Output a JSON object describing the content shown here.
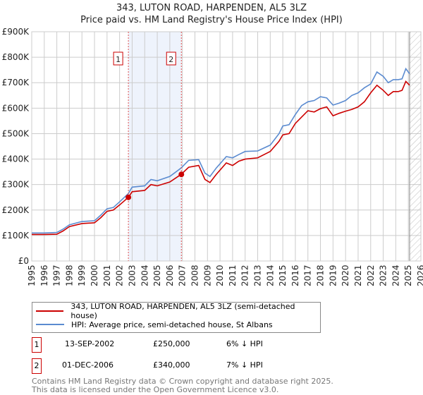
{
  "title": "343, LUTON ROAD, HARPENDEN, AL5 3LZ",
  "subtitle": "Price paid vs. HM Land Registry's House Price Index (HPI)",
  "chart_data": {
    "type": "line",
    "title": "343, LUTON ROAD, HARPENDEN, AL5 3LZ — Price paid vs. HM Land Registry's House Price Index (HPI)",
    "xlim": [
      1995,
      2026
    ],
    "ylim": [
      0,
      900000
    ],
    "x_ticks": [
      "1995",
      "1996",
      "1997",
      "1998",
      "1999",
      "2000",
      "2001",
      "2002",
      "2003",
      "2004",
      "2005",
      "2006",
      "2007",
      "2008",
      "2009",
      "2010",
      "2011",
      "2012",
      "2013",
      "2014",
      "2015",
      "2016",
      "2017",
      "2018",
      "2019",
      "2020",
      "2021",
      "2022",
      "2023",
      "2024",
      "2025",
      "2026"
    ],
    "y_ticks": [
      {
        "v": 0,
        "label": "£0"
      },
      {
        "v": 100000,
        "label": "£100K"
      },
      {
        "v": 200000,
        "label": "£200K"
      },
      {
        "v": 300000,
        "label": "£300K"
      },
      {
        "v": 400000,
        "label": "£400K"
      },
      {
        "v": 500000,
        "label": "£500K"
      },
      {
        "v": 600000,
        "label": "£600K"
      },
      {
        "v": 700000,
        "label": "£700K"
      },
      {
        "v": 800000,
        "label": "£800K"
      },
      {
        "v": 900000,
        "label": "£900K"
      }
    ],
    "grid": true,
    "x": [
      1995,
      1996,
      1997,
      1997.5,
      1998,
      1999,
      2000,
      2000.5,
      2001,
      2001.5,
      2002,
      2002.7,
      2003,
      2004,
      2004.5,
      2005,
      2006,
      2006.9,
      2007.5,
      2008.3,
      2008.8,
      2009.2,
      2009.7,
      2010.5,
      2011,
      2011.5,
      2012,
      2013,
      2014,
      2014.7,
      2015,
      2015.5,
      2016,
      2016.5,
      2017,
      2017.5,
      2018,
      2018.5,
      2019,
      2019.5,
      2020,
      2020.5,
      2021,
      2021.5,
      2022,
      2022.5,
      2023,
      2023.4,
      2023.8,
      2024.2,
      2024.5,
      2024.8,
      2025.1
    ],
    "series": [
      {
        "name": "343, LUTON ROAD, HARPENDEN, AL5 3LZ (semi-detached house)",
        "color": "#cc0000",
        "values": [
          104000,
          104000,
          105000,
          118000,
          135000,
          147000,
          150000,
          170000,
          195000,
          200000,
          220000,
          250000,
          272000,
          277000,
          300000,
          295000,
          310000,
          340000,
          368000,
          375000,
          320000,
          308000,
          340000,
          385000,
          375000,
          392000,
          400000,
          405000,
          430000,
          470000,
          495000,
          500000,
          540000,
          565000,
          590000,
          585000,
          598000,
          605000,
          570000,
          580000,
          588000,
          595000,
          605000,
          625000,
          660000,
          690000,
          670000,
          650000,
          665000,
          665000,
          670000,
          705000,
          690000
        ]
      },
      {
        "name": "HPI: Average price, semi-detached house, St Albans",
        "color": "#5b8bd0",
        "values": [
          110000,
          110000,
          112000,
          125000,
          142000,
          155000,
          158000,
          180000,
          205000,
          210000,
          232000,
          265000,
          290000,
          295000,
          320000,
          315000,
          332000,
          365000,
          395000,
          398000,
          345000,
          332000,
          365000,
          410000,
          405000,
          418000,
          430000,
          432000,
          455000,
          500000,
          530000,
          535000,
          575000,
          610000,
          625000,
          630000,
          645000,
          640000,
          612000,
          620000,
          630000,
          650000,
          660000,
          680000,
          695000,
          742000,
          725000,
          700000,
          712000,
          712000,
          715000,
          755000,
          735000
        ]
      }
    ],
    "sales": [
      {
        "id": "1",
        "x": 2002.7,
        "value": 250000
      },
      {
        "id": "2",
        "x": 2006.92,
        "value": 340000
      }
    ],
    "shaded_range": [
      2002.7,
      2006.92
    ],
    "forecast_hatch_from": 2025.1,
    "legend_position": "bottom"
  },
  "legend": [
    "343, LUTON ROAD, HARPENDEN, AL5 3LZ (semi-detached house)",
    "HPI: Average price, semi-detached house, St Albans"
  ],
  "transactions": [
    {
      "num": "1",
      "date": "13-SEP-2002",
      "price": "£250,000",
      "delta": "6% ↓ HPI"
    },
    {
      "num": "2",
      "date": "01-DEC-2006",
      "price": "£340,000",
      "delta": "7% ↓ HPI"
    }
  ],
  "footer": [
    "Contains HM Land Registry data © Crown copyright and database right 2025.",
    "This data is licensed under the Open Government Licence v3.0."
  ]
}
